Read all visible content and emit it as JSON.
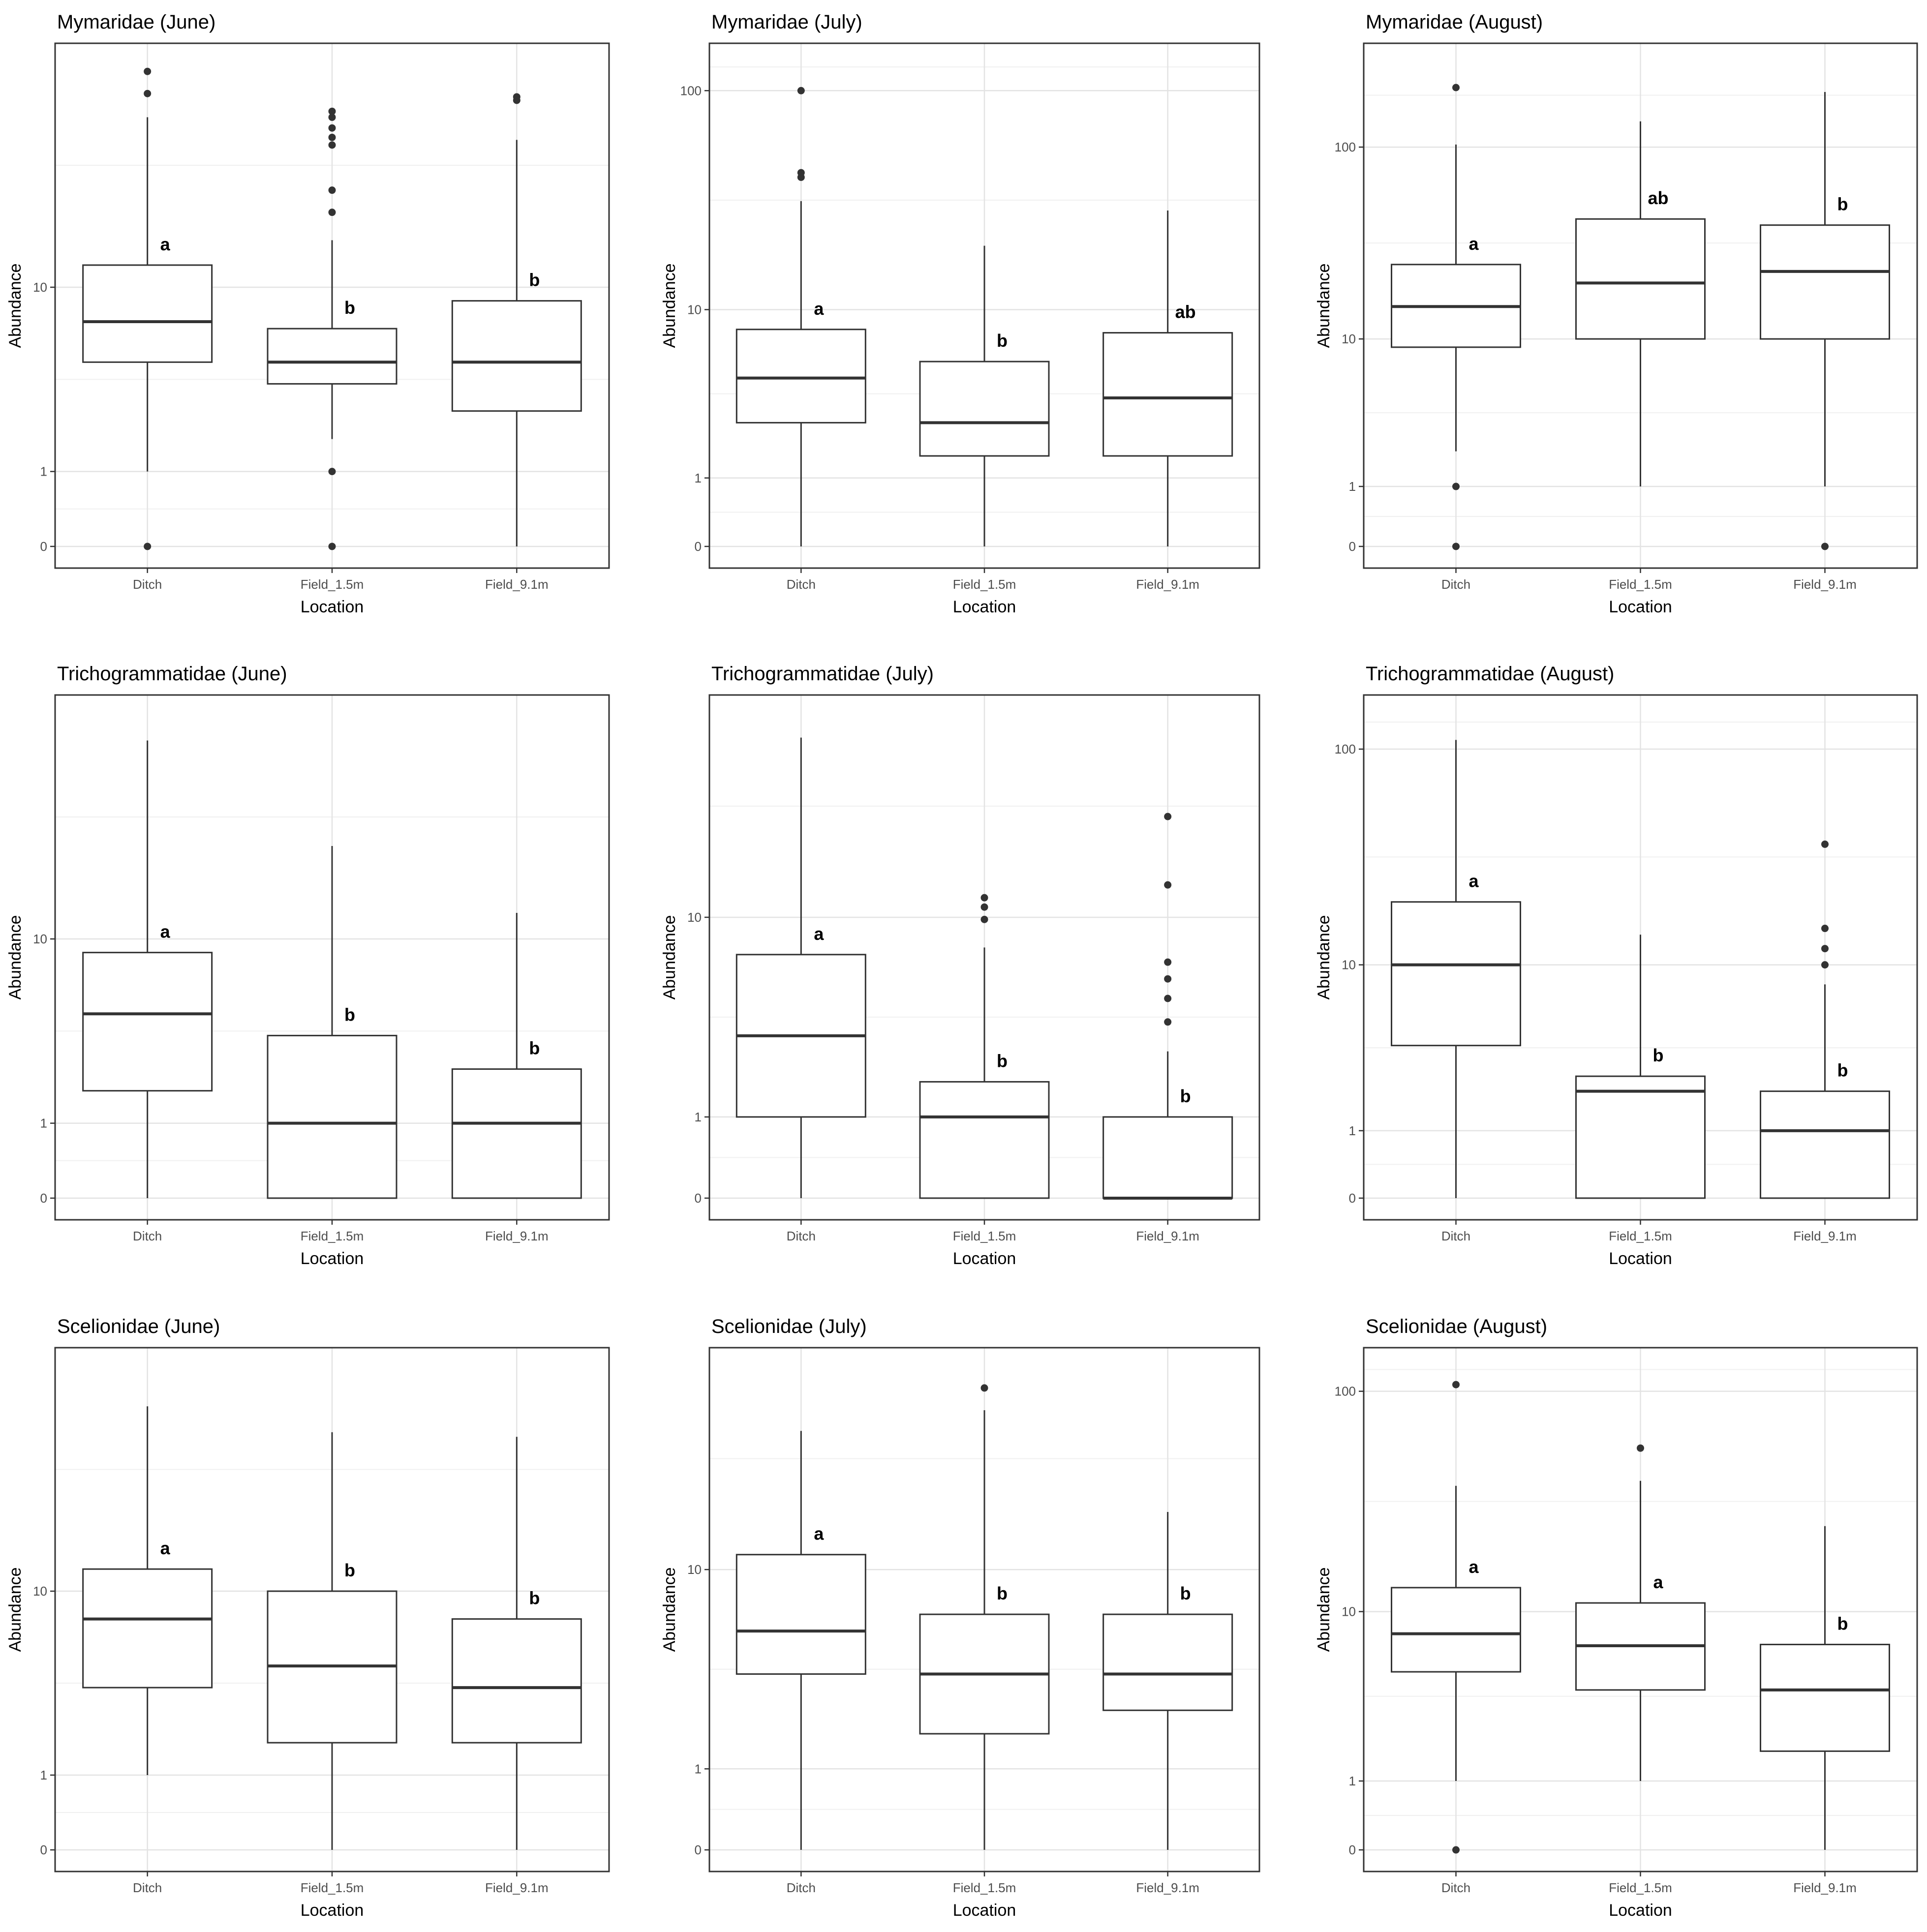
{
  "chart_data": [
    {
      "type": "box",
      "title": "Mymaridae (June)",
      "xlabel": "Location",
      "ylabel": "Abundance",
      "categories": [
        "Ditch",
        "Field_1.5m",
        "Field_9.1m"
      ],
      "y_scale": "log1p",
      "yticks": [
        0,
        1,
        10
      ],
      "ylim": [
        0,
        85
      ],
      "grid": true,
      "boxes": [
        {
          "category": "Ditch",
          "min": 1,
          "q1": 4.5,
          "median": 7,
          "q3": 12.5,
          "max": 52,
          "outliers": [
            0,
            65,
            80
          ],
          "letter": "a"
        },
        {
          "category": "Field_1.5m",
          "min": 1.7,
          "q1": 3.5,
          "median": 4.5,
          "q3": 6.5,
          "max": 16,
          "outliers": [
            0,
            1,
            21,
            26,
            40,
            43,
            47,
            52,
            55
          ],
          "letter": "b"
        },
        {
          "category": "Field_9.1m",
          "min": 0,
          "q1": 2.5,
          "median": 4.5,
          "q3": 8.7,
          "max": 42,
          "outliers": [
            61,
            63
          ],
          "letter": "b"
        }
      ]
    },
    {
      "type": "box",
      "title": "Mymaridae (July)",
      "xlabel": "Location",
      "ylabel": "Abundance",
      "categories": [
        "Ditch",
        "Field_1.5m",
        "Field_9.1m"
      ],
      "y_scale": "log1p",
      "yticks": [
        0,
        1,
        10,
        100
      ],
      "ylim": [
        0,
        130
      ],
      "grid": true,
      "boxes": [
        {
          "category": "Ditch",
          "min": 0,
          "q1": 2.5,
          "median": 4.5,
          "q3": 8,
          "max": 32,
          "outliers": [
            41,
            43,
            100
          ],
          "letter": "a"
        },
        {
          "category": "Field_1.5m",
          "min": 0,
          "q1": 1.5,
          "median": 2.5,
          "q3": 5.5,
          "max": 20,
          "outliers": [],
          "letter": "b"
        },
        {
          "category": "Field_9.1m",
          "min": 0,
          "q1": 1.5,
          "median": 3.5,
          "q3": 7.7,
          "max": 29,
          "outliers": [],
          "letter": "ab"
        }
      ]
    },
    {
      "type": "box",
      "title": "Mymaridae (August)",
      "xlabel": "Location",
      "ylabel": "Abundance",
      "categories": [
        "Ditch",
        "Field_1.5m",
        "Field_9.1m"
      ],
      "y_scale": "log1p",
      "yticks": [
        0,
        1,
        10,
        100
      ],
      "ylim": [
        0,
        260
      ],
      "grid": true,
      "boxes": [
        {
          "category": "Ditch",
          "min": 2,
          "q1": 9,
          "median": 15,
          "q3": 25,
          "max": 103,
          "outliers": [
            0,
            1,
            200
          ],
          "letter": "a"
        },
        {
          "category": "Field_1.5m",
          "min": 1,
          "q1": 10,
          "median": 20,
          "q3": 43,
          "max": 135,
          "outliers": [],
          "letter": "ab"
        },
        {
          "category": "Field_9.1m",
          "min": 1,
          "q1": 10,
          "median": 23,
          "q3": 40,
          "max": 190,
          "outliers": [
            0
          ],
          "letter": "b"
        }
      ]
    },
    {
      "type": "box",
      "title": "Trichogrammatidae (June)",
      "xlabel": "Location",
      "ylabel": "Abundance",
      "categories": [
        "Ditch",
        "Field_1.5m",
        "Field_9.1m"
      ],
      "y_scale": "log1p",
      "yticks": [
        0,
        1,
        10
      ],
      "ylim": [
        0,
        85
      ],
      "grid": true,
      "boxes": [
        {
          "category": "Ditch",
          "min": 0,
          "q1": 1.7,
          "median": 4.5,
          "q3": 8.7,
          "max": 68,
          "outliers": [],
          "letter": "a"
        },
        {
          "category": "Field_1.5m",
          "min": 0,
          "q1": 0,
          "median": 1,
          "q3": 3.5,
          "max": 25,
          "outliers": [],
          "letter": "b"
        },
        {
          "category": "Field_9.1m",
          "min": 0,
          "q1": 0,
          "median": 1,
          "q3": 2.3,
          "max": 13,
          "outliers": [],
          "letter": "b"
        }
      ]
    },
    {
      "type": "box",
      "title": "Trichogrammatidae (July)",
      "xlabel": "Location",
      "ylabel": "Abundance",
      "categories": [
        "Ditch",
        "Field_1.5m",
        "Field_9.1m"
      ],
      "y_scale": "log1p",
      "yticks": [
        0,
        1,
        10
      ],
      "ylim": [
        0,
        60
      ],
      "grid": true,
      "boxes": [
        {
          "category": "Ditch",
          "min": 0,
          "q1": 1,
          "median": 3,
          "q3": 7,
          "max": 50,
          "outliers": [],
          "letter": "a"
        },
        {
          "category": "Field_1.5m",
          "min": 0,
          "q1": 0,
          "median": 1,
          "q3": 1.7,
          "max": 7.5,
          "outliers": [
            9.8,
            11,
            12
          ],
          "letter": "b"
        },
        {
          "category": "Field_9.1m",
          "min": 0,
          "q1": 0,
          "median": 0,
          "q3": 1,
          "max": 2.5,
          "outliers": [
            3.5,
            4.5,
            5.5,
            6.5,
            13.5,
            25
          ],
          "letter": "b"
        }
      ]
    },
    {
      "type": "box",
      "title": "Trichogrammatidae (August)",
      "xlabel": "Location",
      "ylabel": "Abundance",
      "categories": [
        "Ditch",
        "Field_1.5m",
        "Field_9.1m"
      ],
      "y_scale": "log1p",
      "yticks": [
        0,
        1,
        10,
        100
      ],
      "ylim": [
        0,
        140
      ],
      "grid": true,
      "boxes": [
        {
          "category": "Ditch",
          "min": 0,
          "q1": 3.8,
          "median": 10,
          "q3": 20,
          "max": 110,
          "outliers": [],
          "letter": "a"
        },
        {
          "category": "Field_1.5m",
          "min": 0,
          "q1": 0,
          "median": 2,
          "q3": 2.5,
          "max": 14,
          "outliers": [],
          "letter": "b"
        },
        {
          "category": "Field_9.1m",
          "min": 0,
          "q1": 0,
          "median": 1,
          "q3": 2,
          "max": 8,
          "outliers": [
            10,
            12,
            15,
            37
          ],
          "letter": "b"
        }
      ]
    },
    {
      "type": "box",
      "title": "Scelionidae (June)",
      "xlabel": "Location",
      "ylabel": "Abundance",
      "categories": [
        "Ditch",
        "Field_1.5m",
        "Field_9.1m"
      ],
      "y_scale": "log1p",
      "yticks": [
        0,
        1,
        10
      ],
      "ylim": [
        0,
        85
      ],
      "grid": true,
      "boxes": [
        {
          "category": "Ditch",
          "min": 1,
          "q1": 3.5,
          "median": 7.5,
          "q3": 12.5,
          "max": 60,
          "outliers": [],
          "letter": "a"
        },
        {
          "category": "Field_1.5m",
          "min": 0,
          "q1": 1.7,
          "median": 4.5,
          "q3": 10,
          "max": 47,
          "outliers": [],
          "letter": "b"
        },
        {
          "category": "Field_9.1m",
          "min": 0,
          "q1": 1.7,
          "median": 3.5,
          "q3": 7.5,
          "max": 45,
          "outliers": [],
          "letter": "b"
        }
      ]
    },
    {
      "type": "box",
      "title": "Scelionidae (July)",
      "xlabel": "Location",
      "ylabel": "Abundance",
      "categories": [
        "Ditch",
        "Field_1.5m",
        "Field_9.1m"
      ],
      "y_scale": "log1p",
      "yticks": [
        0,
        1,
        10
      ],
      "ylim": [
        0,
        60
      ],
      "grid": true,
      "boxes": [
        {
          "category": "Ditch",
          "min": 0,
          "q1": 3.5,
          "median": 5.5,
          "q3": 11.5,
          "max": 35,
          "outliers": [],
          "letter": "a"
        },
        {
          "category": "Field_1.5m",
          "min": 0,
          "q1": 1.7,
          "median": 3.5,
          "q3": 6.5,
          "max": 42,
          "outliers": [
            51
          ],
          "letter": "b"
        },
        {
          "category": "Field_9.1m",
          "min": 0,
          "q1": 2.3,
          "median": 3.5,
          "q3": 6.5,
          "max": 17,
          "outliers": [],
          "letter": "b"
        }
      ]
    },
    {
      "type": "box",
      "title": "Scelionidae (August)",
      "xlabel": "Location",
      "ylabel": "Abundance",
      "categories": [
        "Ditch",
        "Field_1.5m",
        "Field_9.1m"
      ],
      "y_scale": "log1p",
      "yticks": [
        0,
        1,
        10,
        100
      ],
      "ylim": [
        0,
        125
      ],
      "grid": true,
      "boxes": [
        {
          "category": "Ditch",
          "min": 1,
          "q1": 5,
          "median": 7.8,
          "q3": 13,
          "max": 38,
          "outliers": [
            0,
            107
          ],
          "letter": "a"
        },
        {
          "category": "Field_1.5m",
          "min": 1,
          "q1": 4,
          "median": 6.8,
          "q3": 11,
          "max": 40,
          "outliers": [
            56
          ],
          "letter": "a"
        },
        {
          "category": "Field_9.1m",
          "min": 0,
          "q1": 1.7,
          "median": 4,
          "q3": 6.9,
          "max": 25,
          "outliers": [],
          "letter": "b"
        }
      ]
    }
  ]
}
